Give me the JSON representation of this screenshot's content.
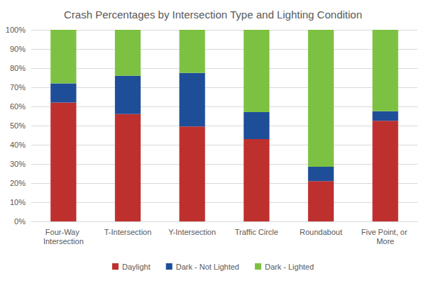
{
  "chart_data": {
    "type": "bar",
    "title": "Crash Percentages by Intersection Type and Lighting Condition",
    "categories": [
      "Four-Way Intersection",
      "T-Intersection",
      "Y-Intersection",
      "Traffic Circle",
      "Roundabout",
      "Five Point, or More"
    ],
    "series": [
      {
        "name": "Daylight",
        "color": "#be302e",
        "values": [
          62,
          56,
          49.5,
          43,
          21,
          52.5
        ]
      },
      {
        "name": "Dark - Not Lighted",
        "color": "#1f4e99",
        "values": [
          10,
          20,
          28,
          14,
          7.5,
          5
        ]
      },
      {
        "name": "Dark - Lighted",
        "color": "#7dc142",
        "values": [
          28,
          24,
          22.5,
          43,
          71.5,
          42.5
        ]
      }
    ],
    "ylim": [
      0,
      100
    ],
    "yticks": [
      {
        "value": 0,
        "label": "0%"
      },
      {
        "value": 10,
        "label": "10%"
      },
      {
        "value": 20,
        "label": "20%"
      },
      {
        "value": 30,
        "label": "30%"
      },
      {
        "value": 40,
        "label": "40%"
      },
      {
        "value": 50,
        "label": "50%"
      },
      {
        "value": 60,
        "label": "60%"
      },
      {
        "value": 70,
        "label": "70%"
      },
      {
        "value": 80,
        "label": "80%"
      },
      {
        "value": 90,
        "label": "90%"
      },
      {
        "value": 100,
        "label": "100%"
      }
    ],
    "stacked": true,
    "grid": true,
    "legend": "bottom",
    "data_labels": false
  }
}
